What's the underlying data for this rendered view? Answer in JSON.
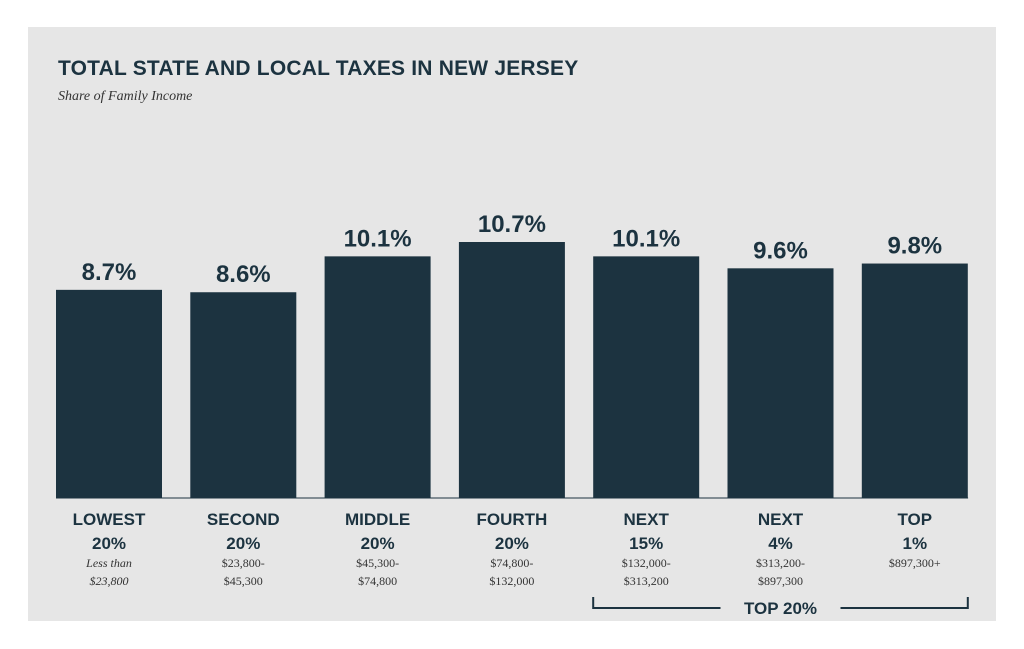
{
  "chart_data": {
    "type": "bar",
    "title": "TOTAL STATE AND LOCAL TAXES IN NEW JERSEY",
    "subtitle": "Share of Family Income",
    "colors": {
      "bar": "#1c3340",
      "panel": "#e6e6e6",
      "text": "#1c3340"
    },
    "unit": "%",
    "categories": [
      {
        "line1": "LOWEST",
        "line2": "20%",
        "range1": "Less than",
        "range2": "$23,800",
        "italic_range": true
      },
      {
        "line1": "SECOND",
        "line2": "20%",
        "range1": "$23,800-",
        "range2": "$45,300",
        "italic_range": false
      },
      {
        "line1": "MIDDLE",
        "line2": "20%",
        "range1": "$45,300-",
        "range2": "$74,800",
        "italic_range": false
      },
      {
        "line1": "FOURTH",
        "line2": "20%",
        "range1": "$74,800-",
        "range2": "$132,000",
        "italic_range": false
      },
      {
        "line1": "NEXT",
        "line2": "15%",
        "range1": "$132,000-",
        "range2": "$313,200",
        "italic_range": false
      },
      {
        "line1": "NEXT",
        "line2": "4%",
        "range1": "$313,200-",
        "range2": "$897,300",
        "italic_range": false
      },
      {
        "line1": "TOP",
        "line2": "1%",
        "range1": "$897,300+",
        "range2": "",
        "italic_range": false
      }
    ],
    "values": [
      8.7,
      8.6,
      10.1,
      10.7,
      10.1,
      9.6,
      9.8
    ],
    "value_labels": [
      "8.7%",
      "8.6%",
      "10.1%",
      "10.7%",
      "10.1%",
      "9.6%",
      "9.8%"
    ],
    "bracket": {
      "label": "TOP 20%",
      "from_index": 4,
      "to_index": 6
    },
    "ylim": [
      0,
      10.7
    ],
    "grid": false,
    "legend": "none"
  }
}
